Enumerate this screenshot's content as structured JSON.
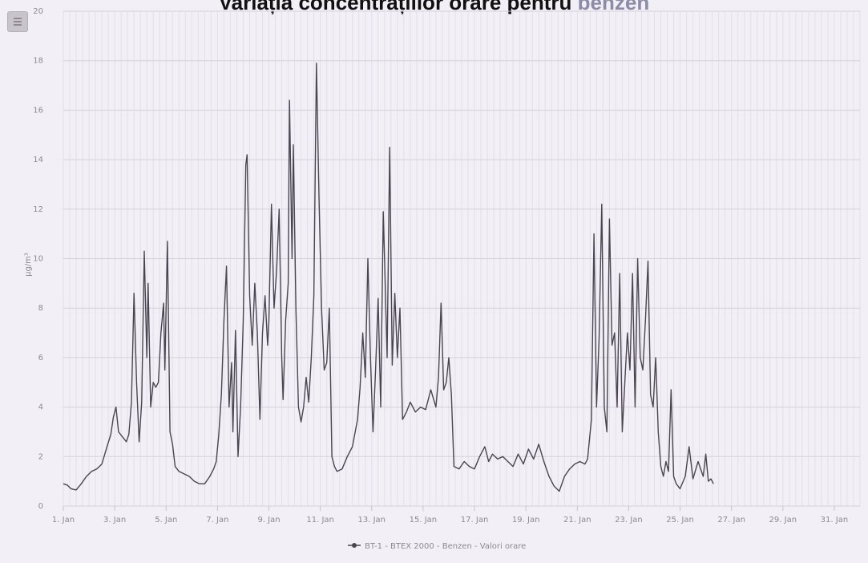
{
  "chart_data": {
    "type": "line",
    "title_main": "Variația concentrațiilor orare pentru",
    "title_accent": "benzen",
    "ylabel": "µg/m³",
    "ylim": [
      0,
      20
    ],
    "yticks": [
      "0",
      "2",
      "4",
      "6",
      "8",
      "10",
      "12",
      "14",
      "16",
      "18",
      "20"
    ],
    "xlim": [
      0,
      31
    ],
    "xticks": [
      {
        "x": 0,
        "label": "1. Jan"
      },
      {
        "x": 2,
        "label": "3. Jan"
      },
      {
        "x": 4,
        "label": "5. Jan"
      },
      {
        "x": 6,
        "label": "7. Jan"
      },
      {
        "x": 8,
        "label": "9. Jan"
      },
      {
        "x": 10,
        "label": "11. Jan"
      },
      {
        "x": 12,
        "label": "13. Jan"
      },
      {
        "x": 14,
        "label": "15. Jan"
      },
      {
        "x": 16,
        "label": "17. Jan"
      },
      {
        "x": 18,
        "label": "19. Jan"
      },
      {
        "x": 20,
        "label": "21. Jan"
      },
      {
        "x": 22,
        "label": "23. Jan"
      },
      {
        "x": 24,
        "label": "25. Jan"
      },
      {
        "x": 26,
        "label": "27. Jan"
      },
      {
        "x": 28,
        "label": "29. Jan"
      },
      {
        "x": 30,
        "label": "31. Jan"
      }
    ],
    "grid": true,
    "legend_position": "bottom-center",
    "series": [
      {
        "name": "BT-1 - BTEX 2000 - Benzen - Valori orare",
        "color": "#4a4550",
        "points": [
          [
            0,
            0.9
          ],
          [
            0.15,
            0.85
          ],
          [
            0.3,
            0.7
          ],
          [
            0.5,
            0.65
          ],
          [
            0.7,
            0.9
          ],
          [
            0.9,
            1.2
          ],
          [
            1.1,
            1.4
          ],
          [
            1.3,
            1.5
          ],
          [
            1.5,
            1.7
          ],
          [
            1.7,
            2.4
          ],
          [
            1.85,
            2.9
          ],
          [
            1.95,
            3.6
          ],
          [
            2.05,
            4.0
          ],
          [
            2.15,
            3.0
          ],
          [
            2.3,
            2.8
          ],
          [
            2.45,
            2.6
          ],
          [
            2.55,
            2.9
          ],
          [
            2.65,
            4.2
          ],
          [
            2.75,
            8.6
          ],
          [
            2.85,
            5.0
          ],
          [
            2.95,
            2.6
          ],
          [
            3.05,
            4.2
          ],
          [
            3.15,
            10.3
          ],
          [
            3.25,
            6.0
          ],
          [
            3.3,
            9.0
          ],
          [
            3.4,
            4.0
          ],
          [
            3.5,
            5.0
          ],
          [
            3.6,
            4.8
          ],
          [
            3.7,
            5.0
          ],
          [
            3.8,
            7.0
          ],
          [
            3.9,
            8.2
          ],
          [
            3.95,
            5.5
          ],
          [
            4.05,
            10.7
          ],
          [
            4.15,
            3.0
          ],
          [
            4.25,
            2.5
          ],
          [
            4.35,
            1.6
          ],
          [
            4.5,
            1.4
          ],
          [
            4.7,
            1.3
          ],
          [
            4.9,
            1.2
          ],
          [
            5.1,
            1.0
          ],
          [
            5.3,
            0.9
          ],
          [
            5.5,
            0.9
          ],
          [
            5.7,
            1.2
          ],
          [
            5.85,
            1.5
          ],
          [
            5.95,
            1.8
          ],
          [
            6.05,
            2.9
          ],
          [
            6.15,
            4.5
          ],
          [
            6.25,
            7.5
          ],
          [
            6.35,
            9.7
          ],
          [
            6.45,
            4.0
          ],
          [
            6.55,
            5.8
          ],
          [
            6.6,
            3.0
          ],
          [
            6.7,
            7.1
          ],
          [
            6.8,
            2.0
          ],
          [
            6.9,
            4.0
          ],
          [
            7.0,
            7.5
          ],
          [
            7.1,
            13.8
          ],
          [
            7.15,
            14.2
          ],
          [
            7.25,
            8.5
          ],
          [
            7.35,
            6.5
          ],
          [
            7.45,
            9.0
          ],
          [
            7.55,
            7.0
          ],
          [
            7.65,
            3.5
          ],
          [
            7.75,
            7.0
          ],
          [
            7.85,
            8.5
          ],
          [
            7.95,
            6.5
          ],
          [
            8.0,
            7.5
          ],
          [
            8.1,
            12.2
          ],
          [
            8.2,
            8.0
          ],
          [
            8.3,
            9.5
          ],
          [
            8.4,
            12.0
          ],
          [
            8.5,
            6.0
          ],
          [
            8.55,
            4.3
          ],
          [
            8.65,
            7.5
          ],
          [
            8.75,
            9.0
          ],
          [
            8.8,
            16.4
          ],
          [
            8.9,
            10.0
          ],
          [
            8.95,
            14.6
          ],
          [
            9.05,
            8.0
          ],
          [
            9.15,
            4.0
          ],
          [
            9.25,
            3.4
          ],
          [
            9.35,
            4.0
          ],
          [
            9.45,
            5.2
          ],
          [
            9.55,
            4.2
          ],
          [
            9.65,
            6.0
          ],
          [
            9.75,
            8.5
          ],
          [
            9.85,
            17.9
          ],
          [
            9.95,
            12.5
          ],
          [
            10.05,
            8.0
          ],
          [
            10.15,
            5.5
          ],
          [
            10.25,
            5.8
          ],
          [
            10.35,
            8.0
          ],
          [
            10.45,
            2.0
          ],
          [
            10.55,
            1.6
          ],
          [
            10.65,
            1.4
          ],
          [
            10.85,
            1.5
          ],
          [
            11.05,
            2.0
          ],
          [
            11.25,
            2.4
          ],
          [
            11.45,
            3.5
          ],
          [
            11.55,
            4.8
          ],
          [
            11.65,
            7.0
          ],
          [
            11.75,
            5.2
          ],
          [
            11.85,
            10.0
          ],
          [
            11.95,
            6.0
          ],
          [
            12.05,
            3.0
          ],
          [
            12.15,
            5.5
          ],
          [
            12.25,
            8.4
          ],
          [
            12.35,
            4.0
          ],
          [
            12.45,
            11.9
          ],
          [
            12.5,
            10.0
          ],
          [
            12.6,
            6.0
          ],
          [
            12.7,
            14.5
          ],
          [
            12.8,
            5.7
          ],
          [
            12.9,
            8.6
          ],
          [
            13.0,
            6.0
          ],
          [
            13.1,
            8.0
          ],
          [
            13.2,
            3.5
          ],
          [
            13.35,
            3.8
          ],
          [
            13.5,
            4.2
          ],
          [
            13.7,
            3.8
          ],
          [
            13.9,
            4.0
          ],
          [
            14.1,
            3.9
          ],
          [
            14.3,
            4.7
          ],
          [
            14.5,
            4.0
          ],
          [
            14.6,
            5.2
          ],
          [
            14.7,
            8.2
          ],
          [
            14.8,
            4.7
          ],
          [
            14.9,
            5.0
          ],
          [
            15.0,
            6.0
          ],
          [
            15.1,
            4.5
          ],
          [
            15.2,
            1.6
          ],
          [
            15.4,
            1.5
          ],
          [
            15.6,
            1.8
          ],
          [
            15.8,
            1.6
          ],
          [
            16.0,
            1.5
          ],
          [
            16.2,
            2.0
          ],
          [
            16.4,
            2.4
          ],
          [
            16.55,
            1.8
          ],
          [
            16.7,
            2.1
          ],
          [
            16.9,
            1.9
          ],
          [
            17.1,
            2.0
          ],
          [
            17.3,
            1.8
          ],
          [
            17.5,
            1.6
          ],
          [
            17.7,
            2.1
          ],
          [
            17.9,
            1.7
          ],
          [
            18.1,
            2.3
          ],
          [
            18.3,
            1.9
          ],
          [
            18.5,
            2.5
          ],
          [
            18.7,
            1.8
          ],
          [
            18.9,
            1.2
          ],
          [
            19.1,
            0.8
          ],
          [
            19.3,
            0.6
          ],
          [
            19.5,
            1.2
          ],
          [
            19.7,
            1.5
          ],
          [
            19.9,
            1.7
          ],
          [
            20.1,
            1.8
          ],
          [
            20.3,
            1.7
          ],
          [
            20.4,
            1.9
          ],
          [
            20.55,
            3.5
          ],
          [
            20.65,
            11.0
          ],
          [
            20.75,
            4.0
          ],
          [
            20.85,
            6.8
          ],
          [
            20.95,
            12.2
          ],
          [
            21.05,
            4.0
          ],
          [
            21.15,
            3.0
          ],
          [
            21.25,
            11.6
          ],
          [
            21.35,
            6.5
          ],
          [
            21.45,
            7.0
          ],
          [
            21.55,
            4.0
          ],
          [
            21.65,
            9.4
          ],
          [
            21.75,
            3.0
          ],
          [
            21.85,
            5.0
          ],
          [
            21.95,
            7.0
          ],
          [
            22.05,
            5.5
          ],
          [
            22.15,
            9.4
          ],
          [
            22.25,
            4.0
          ],
          [
            22.35,
            10.0
          ],
          [
            22.45,
            6.0
          ],
          [
            22.55,
            5.5
          ],
          [
            22.65,
            7.5
          ],
          [
            22.75,
            9.9
          ],
          [
            22.85,
            4.5
          ],
          [
            22.95,
            4.0
          ],
          [
            23.05,
            6.0
          ],
          [
            23.15,
            3.0
          ],
          [
            23.25,
            1.6
          ],
          [
            23.35,
            1.2
          ],
          [
            23.45,
            1.8
          ],
          [
            23.55,
            1.4
          ],
          [
            23.65,
            4.7
          ],
          [
            23.75,
            1.2
          ],
          [
            23.85,
            0.9
          ],
          [
            24.0,
            0.7
          ],
          [
            24.2,
            1.2
          ],
          [
            24.35,
            2.4
          ],
          [
            24.5,
            1.1
          ],
          [
            24.7,
            1.8
          ],
          [
            24.9,
            1.2
          ],
          [
            25.0,
            2.1
          ],
          [
            25.1,
            1.0
          ],
          [
            25.2,
            1.1
          ],
          [
            25.3,
            0.9
          ]
        ]
      }
    ]
  }
}
